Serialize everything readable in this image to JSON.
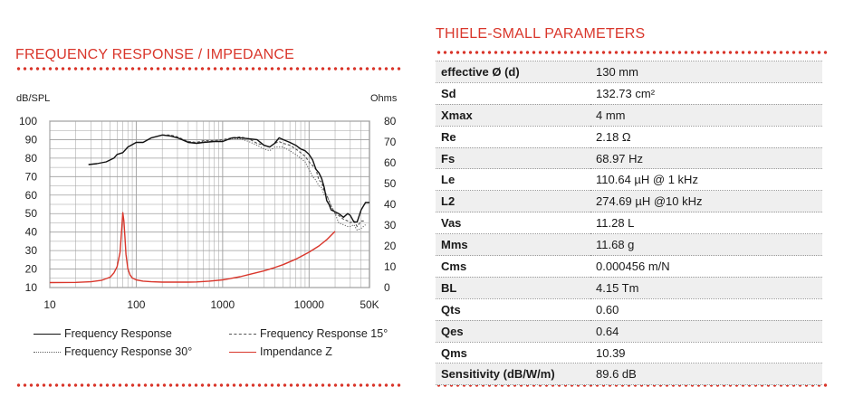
{
  "left_title": "FREQUENCY RESPONSE / IMPEDANCE",
  "right_title": "THIELE-SMALL PARAMETERS",
  "colors": {
    "accent": "#d9362b",
    "grid": "#9e9e9e"
  },
  "chart_data": {
    "type": "line",
    "xscale": "log",
    "xlim": [
      10,
      50000
    ],
    "x_tick_labels": [
      "10",
      "100",
      "1000",
      "10000",
      "50K"
    ],
    "x_tick_values": [
      10,
      100,
      1000,
      10000,
      50000
    ],
    "ylabel_left": "dB/SPL",
    "ylabel_right": "Ohms",
    "ylim_left": [
      10,
      100
    ],
    "ylim_right": [
      0,
      80
    ],
    "y_left_ticks": [
      "100",
      "90",
      "80",
      "70",
      "60",
      "50",
      "40",
      "30",
      "20",
      "10"
    ],
    "y_right_ticks": [
      "80",
      "70",
      "60",
      "50",
      "40",
      "30",
      "20",
      "10",
      "0"
    ],
    "grid": true,
    "legend_position": "bottom",
    "series": [
      {
        "name": "Frequency Response",
        "axis": "left",
        "color": "#111111",
        "dash": "solid",
        "x": [
          28,
          35,
          45,
          55,
          60,
          70,
          80,
          100,
          120,
          150,
          200,
          250,
          300,
          400,
          500,
          600,
          800,
          1000,
          1300,
          1600,
          2000,
          2500,
          3000,
          3500,
          4000,
          4500,
          5000,
          6000,
          7000,
          8000,
          9000,
          10000,
          11000,
          12000,
          13000,
          14000,
          15000,
          16000,
          17000,
          18000,
          20000,
          22000,
          25000,
          28000,
          30000,
          33000,
          36000,
          40000,
          45000,
          50000
        ],
        "y": [
          76.5,
          77,
          78,
          80,
          82,
          83,
          86,
          88.5,
          88.5,
          91,
          92.5,
          92,
          91,
          88.5,
          88,
          88.5,
          89,
          89,
          91,
          91,
          90.5,
          90,
          87,
          86,
          88,
          91,
          90,
          88.5,
          87,
          85,
          84,
          82,
          79,
          74,
          72,
          69,
          64,
          57,
          55,
          52,
          51,
          50,
          48,
          50,
          49,
          45.5,
          45.5,
          52,
          56,
          56
        ]
      },
      {
        "name": "Frequency Response 15°",
        "axis": "left",
        "color": "#555555",
        "dash": "dashed",
        "x": [
          200,
          250,
          300,
          400,
          500,
          600,
          800,
          1000,
          1300,
          1600,
          2000,
          2500,
          3000,
          3500,
          4000,
          4500,
          5000,
          6000,
          7000,
          8000,
          9000,
          10000,
          11000,
          12000,
          13000,
          14000,
          15000,
          16000,
          18000,
          20000,
          22000,
          25000,
          28000,
          30000,
          33000,
          36000,
          40000,
          45000
        ],
        "y": [
          92.5,
          92.5,
          91.5,
          89,
          88.5,
          89.5,
          89.5,
          90,
          91,
          91.5,
          90.5,
          88,
          87,
          86,
          88,
          89,
          88,
          87,
          85,
          83,
          81,
          78,
          76,
          74,
          68,
          67,
          62,
          60,
          54,
          50,
          49,
          47,
          46,
          45,
          46,
          43,
          46,
          46
        ]
      },
      {
        "name": "Frequency Response 30°",
        "axis": "left",
        "color": "#666666",
        "dash": "dotted",
        "x": [
          300,
          400,
          500,
          600,
          800,
          1000,
          1300,
          1600,
          2000,
          2500,
          3000,
          3500,
          4000,
          5000,
          6000,
          7000,
          8000,
          9000,
          10000,
          11000,
          12000,
          13000,
          14000,
          15000,
          16000,
          18000,
          20000,
          22000,
          25000,
          28000,
          30000,
          33000,
          36000,
          40000,
          45000
        ],
        "y": [
          91,
          89,
          88,
          89,
          89,
          89.5,
          90.5,
          90.5,
          89,
          87,
          85,
          84,
          86,
          86,
          84,
          82,
          80,
          78,
          74,
          70,
          68,
          65,
          64,
          60,
          60,
          54,
          50,
          45,
          44,
          43,
          43,
          44,
          41,
          42,
          44
        ]
      },
      {
        "name": "Impendance Z",
        "axis": "right",
        "color": "#d9362b",
        "dash": "solid",
        "x": [
          10,
          20,
          30,
          40,
          50,
          55,
          60,
          65,
          68,
          70,
          72,
          74,
          76,
          80,
          85,
          90,
          100,
          120,
          150,
          200,
          300,
          400,
          500,
          700,
          1000,
          1300,
          1600,
          2000,
          3000,
          4000,
          5000,
          7000,
          10000,
          13000,
          16000,
          20000
        ],
        "y": [
          2.4,
          2.5,
          2.8,
          3.5,
          5,
          7,
          10,
          17,
          28,
          36,
          32,
          24,
          16,
          9,
          6,
          4.6,
          3.7,
          3.1,
          2.8,
          2.6,
          2.6,
          2.6,
          2.7,
          3.1,
          3.7,
          4.5,
          5.2,
          6.2,
          8,
          9.6,
          11,
          13.6,
          17,
          20,
          23,
          27
        ]
      }
    ]
  },
  "legend": [
    {
      "label": "Frequency Response"
    },
    {
      "label": "Frequency Response 15°"
    },
    {
      "label": "Frequency Response 30°"
    },
    {
      "label": "Impendance Z"
    }
  ],
  "parameters": [
    {
      "name": "effective Ø (d)",
      "value": "130 mm"
    },
    {
      "name": "Sd",
      "value": "132.73 cm²"
    },
    {
      "name": "Xmax",
      "value": "4 mm"
    },
    {
      "name": "Re",
      "value": "2.18 Ω"
    },
    {
      "name": "Fs",
      "value": "68.97 Hz"
    },
    {
      "name": "Le",
      "value": "110.64 µH @ 1 kHz"
    },
    {
      "name": "L2",
      "value": "274.69 µH @10 kHz"
    },
    {
      "name": "Vas",
      "value": "11.28 L"
    },
    {
      "name": "Mms",
      "value": "11.68 g"
    },
    {
      "name": "Cms",
      "value": "0.000456 m/N"
    },
    {
      "name": "BL",
      "value": "4.15 Tm"
    },
    {
      "name": "Qts",
      "value": "0.60"
    },
    {
      "name": "Qes",
      "value": "0.64"
    },
    {
      "name": "Qms",
      "value": "10.39"
    },
    {
      "name": "Sensitivity (dB/W/m)",
      "value": "89.6 dB"
    }
  ]
}
